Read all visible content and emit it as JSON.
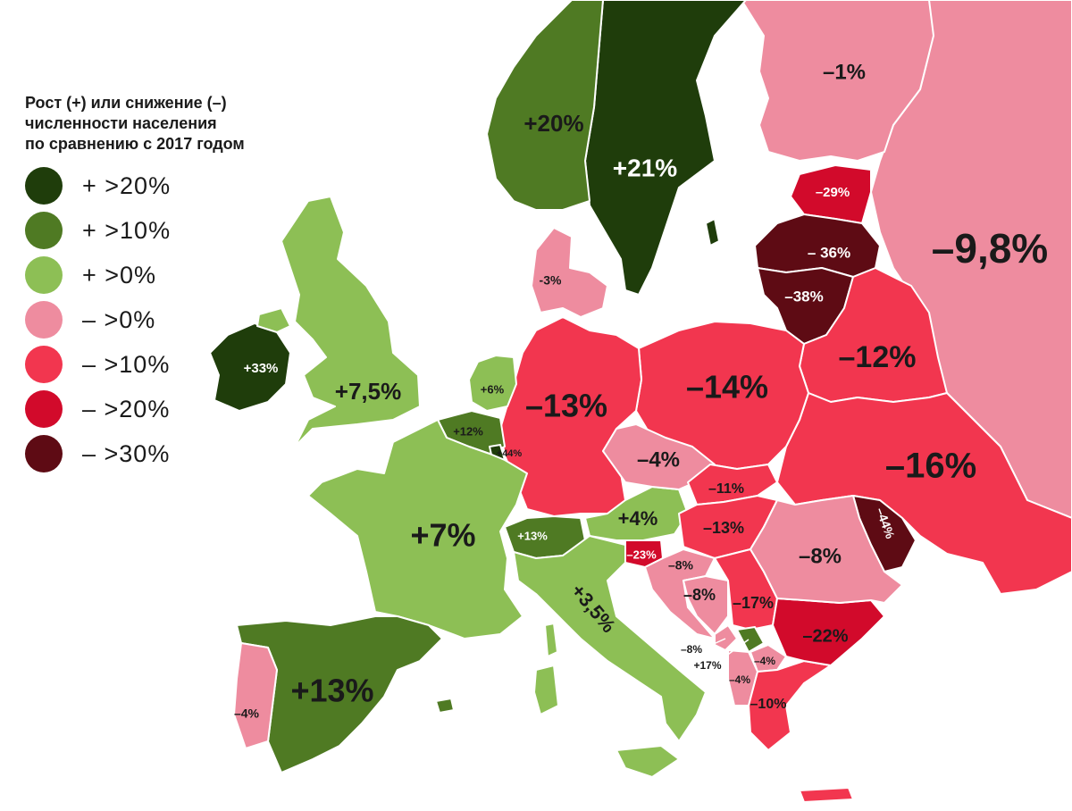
{
  "legend": {
    "title_lines": [
      "Рост (+) или снижение (–)",
      "численности населения",
      "по сравнению с 2017 годом"
    ],
    "items": [
      {
        "label": "+ >20%",
        "color": "#1f3d0b"
      },
      {
        "label": "+ >10%",
        "color": "#4f7a23"
      },
      {
        "label": "+ >0%",
        "color": "#8dbf55"
      },
      {
        "label": "– >0%",
        "color": "#ee8c9f"
      },
      {
        "label": "– >10%",
        "color": "#f2364f"
      },
      {
        "label": "– >20%",
        "color": "#d20a2b"
      },
      {
        "label": "– >30%",
        "color": "#5e0b14"
      }
    ]
  },
  "countries": [
    {
      "id": "norway",
      "label": "+20%",
      "class": "+ >10%"
    },
    {
      "id": "sweden",
      "label": "+21%",
      "class": "+ >20%"
    },
    {
      "id": "finland",
      "label": "–1%",
      "class": "– >0%"
    },
    {
      "id": "russia",
      "label": "–9,8%",
      "class": "– >0%"
    },
    {
      "id": "estonia",
      "label": "–29%",
      "class": "– >20%"
    },
    {
      "id": "latvia",
      "label": "– 36%",
      "class": "– >30%"
    },
    {
      "id": "lithuania",
      "label": "–38%",
      "class": "– >30%"
    },
    {
      "id": "belarus",
      "label": "–12%",
      "class": "– >10%"
    },
    {
      "id": "ukraine",
      "label": "–16%",
      "class": "– >10%"
    },
    {
      "id": "poland",
      "label": "–14%",
      "class": "– >10%"
    },
    {
      "id": "germany",
      "label": "–13%",
      "class": "– >10%"
    },
    {
      "id": "denmark",
      "label": "-3%",
      "class": "– >0%"
    },
    {
      "id": "netherlands",
      "label": "+6%",
      "class": "+ >0%"
    },
    {
      "id": "belgium",
      "label": "+12%",
      "class": "+ >10%"
    },
    {
      "id": "luxembourg",
      "label": "+44%",
      "class": "+ >20%"
    },
    {
      "id": "uk",
      "label": "+7,5%",
      "class": "+ >0%"
    },
    {
      "id": "ireland",
      "label": "+33%",
      "class": "+ >20%"
    },
    {
      "id": "france",
      "label": "+7%",
      "class": "+ >0%"
    },
    {
      "id": "spain",
      "label": "+13%",
      "class": "+ >10%"
    },
    {
      "id": "portugal",
      "label": "–4%",
      "class": "– >0%"
    },
    {
      "id": "switzerland",
      "label": "+13%",
      "class": "+ >10%"
    },
    {
      "id": "italy",
      "label": "+3,5%",
      "class": "+ >0%"
    },
    {
      "id": "austria",
      "label": "+4%",
      "class": "+ >0%"
    },
    {
      "id": "czechia",
      "label": "–4%",
      "class": "– >0%"
    },
    {
      "id": "slovakia",
      "label": "–11%",
      "class": "– >10%"
    },
    {
      "id": "hungary",
      "label": "–13%",
      "class": "– >10%"
    },
    {
      "id": "slovenia",
      "label": "–23%",
      "class": "– >20%"
    },
    {
      "id": "croatia",
      "label": "–8%",
      "class": "– >0%"
    },
    {
      "id": "bosnia",
      "label": "–8%",
      "class": "– >0%"
    },
    {
      "id": "serbia",
      "label": "–17%",
      "class": "– >10%"
    },
    {
      "id": "montenegro",
      "label": "–8%",
      "class": "– >0%"
    },
    {
      "id": "kosovo",
      "label": "+17%",
      "class": "+ >10%"
    },
    {
      "id": "north-macedonia",
      "label": "–4%",
      "class": "– >0%"
    },
    {
      "id": "albania",
      "label": "–4%",
      "class": "– >0%"
    },
    {
      "id": "greece",
      "label": "–10%",
      "class": "– >10%"
    },
    {
      "id": "bulgaria",
      "label": "–22%",
      "class": "– >20%"
    },
    {
      "id": "romania",
      "label": "–8%",
      "class": "– >0%"
    },
    {
      "id": "moldova",
      "label": "–44%",
      "class": "– >30%"
    }
  ]
}
